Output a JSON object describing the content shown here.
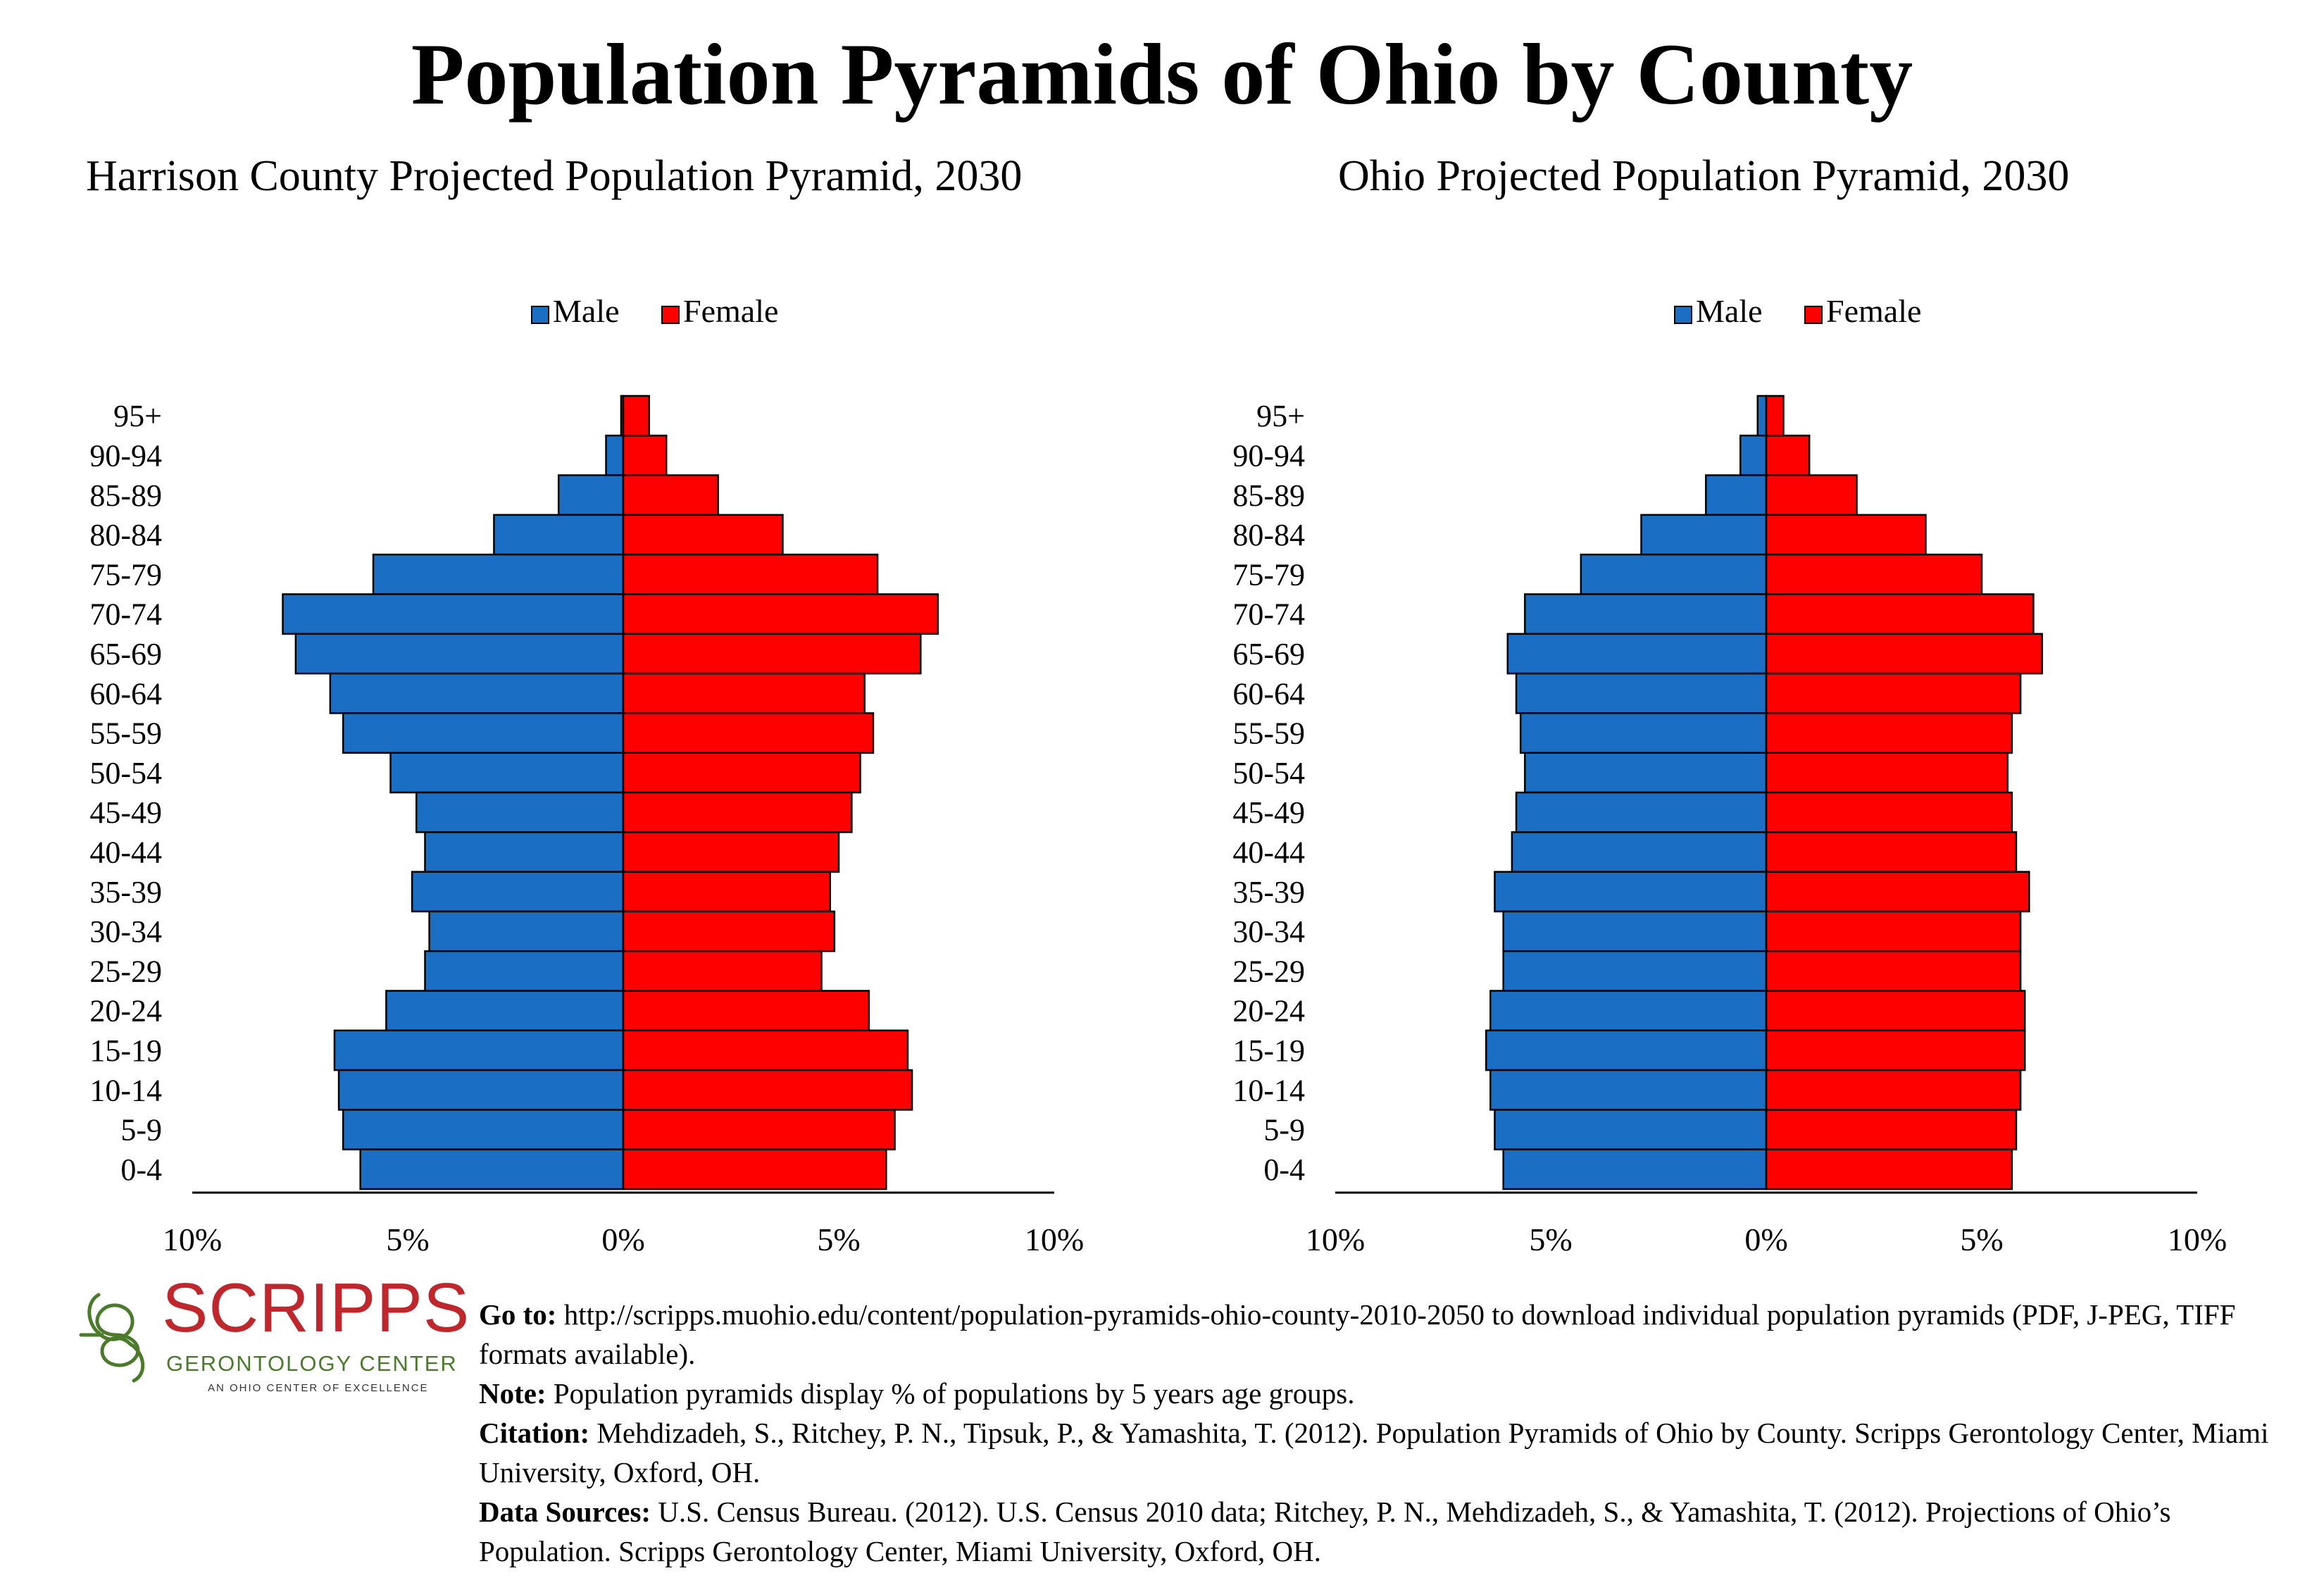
{
  "title": "Population Pyramids of Ohio by County",
  "colors": {
    "male": "#1a6fc4",
    "female": "#ff0000",
    "bar_stroke": "#000000"
  },
  "chart_data": [
    {
      "type": "bar",
      "orientation": "horizontal-pyramid",
      "title": "Harrison County Projected Population Pyramid, 2030",
      "categories": [
        "95+",
        "90-94",
        "85-89",
        "80-84",
        "75-79",
        "70-74",
        "65-69",
        "60-64",
        "55-59",
        "50-54",
        "45-49",
        "40-44",
        "35-39",
        "30-34",
        "25-29",
        "20-24",
        "15-19",
        "10-14",
        "5-9",
        "0-4"
      ],
      "series": [
        {
          "name": "Male",
          "values": [
            0.05,
            0.4,
            1.5,
            3.0,
            5.8,
            7.9,
            7.6,
            6.8,
            6.5,
            5.4,
            4.8,
            4.6,
            4.9,
            4.5,
            4.6,
            5.5,
            6.7,
            6.6,
            6.5,
            6.1
          ]
        },
        {
          "name": "Female",
          "values": [
            0.6,
            1.0,
            2.2,
            3.7,
            5.9,
            7.3,
            6.9,
            5.6,
            5.8,
            5.5,
            5.3,
            5.0,
            4.8,
            4.9,
            4.6,
            5.7,
            6.6,
            6.7,
            6.3,
            6.1
          ]
        }
      ],
      "xlim": [
        -10,
        10
      ],
      "tick_labels": [
        "10%",
        "5%",
        "0%",
        "5%",
        "10%"
      ],
      "legend": "top-center",
      "grid": false
    },
    {
      "type": "bar",
      "orientation": "horizontal-pyramid",
      "title": "Ohio Projected Population Pyramid, 2030",
      "categories": [
        "95+",
        "90-94",
        "85-89",
        "80-84",
        "75-79",
        "70-74",
        "65-69",
        "60-64",
        "55-59",
        "50-54",
        "45-49",
        "40-44",
        "35-39",
        "30-34",
        "25-29",
        "20-24",
        "15-19",
        "10-14",
        "5-9",
        "0-4"
      ],
      "series": [
        {
          "name": "Male",
          "values": [
            0.2,
            0.6,
            1.4,
            2.9,
            4.3,
            5.6,
            6.0,
            5.8,
            5.7,
            5.6,
            5.8,
            5.9,
            6.3,
            6.1,
            6.1,
            6.4,
            6.5,
            6.4,
            6.3,
            6.1
          ]
        },
        {
          "name": "Female",
          "values": [
            0.4,
            1.0,
            2.1,
            3.7,
            5.0,
            6.2,
            6.4,
            5.9,
            5.7,
            5.6,
            5.7,
            5.8,
            6.1,
            5.9,
            5.9,
            6.0,
            6.0,
            5.9,
            5.8,
            5.7
          ]
        }
      ],
      "xlim": [
        -10,
        10
      ],
      "tick_labels": [
        "10%",
        "5%",
        "0%",
        "5%",
        "10%"
      ],
      "legend": "top-center",
      "grid": false
    }
  ],
  "logo": {
    "name": "SCRIPPS",
    "subtitle": "GERONTOLOGY CENTER",
    "tagline": "AN OHIO CENTER OF EXCELLENCE",
    "icon": "spiral-logo-icon"
  },
  "footer": {
    "goto_label": "Go to:",
    "goto_text": " http://scripps.muohio.edu/content/population-pyramids-ohio-county-2010-2050 to download individual population pyramids (PDF, J-PEG, TIFF formats available).",
    "note_label": "Note:",
    "note_text": " Population pyramids display % of populations by 5 years age groups.",
    "citation_label": "Citation:",
    "citation_text": " Mehdizadeh, S., Ritchey, P. N., Tipsuk, P., & Yamashita, T. (2012). Population Pyramids of Ohio by County. Scripps Gerontology Center, Miami University, Oxford, OH.",
    "sources_label": "Data Sources:",
    "sources_text": " U.S. Census Bureau. (2012). U.S. Census 2010 data; Ritchey, P. N., Mehdizadeh, S., & Yamashita, T. (2012). Projections of Ohio’s Population. Scripps Gerontology Center, Miami University, Oxford, OH."
  }
}
